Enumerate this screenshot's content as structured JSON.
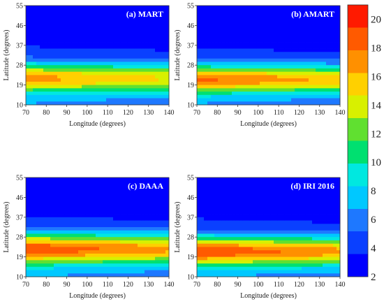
{
  "chart_data": {
    "type": "heatmap",
    "panels": [
      {
        "title": "(a) MART",
        "xlabel": "Longitude (degrees)",
        "ylabel": "Latitude (degrees)",
        "peak": 17.5,
        "peak_lat": 22,
        "spread": 1.0
      },
      {
        "title": "(b) AMART",
        "xlabel": "Longitude (degrees)",
        "ylabel": "Latitude (degrees)",
        "peak": 18.8,
        "peak_lat": 21.5,
        "spread": 0.95
      },
      {
        "title": "(c) DAAA",
        "xlabel": "Longitude (degrees)",
        "ylabel": "Latitude (degrees)",
        "peak": 19.8,
        "peak_lat": 22.5,
        "spread": 1.05
      },
      {
        "title": "(d) IRI 2016",
        "xlabel": "Longitude (degrees)",
        "ylabel": "Latitude (degrees)",
        "peak": 20.0,
        "peak_lat": 21.5,
        "spread": 1.0
      }
    ],
    "x_ticks": [
      "70",
      "80",
      "90",
      "100",
      "110",
      "120",
      "130",
      "140"
    ],
    "y_ticks": [
      "10",
      "19",
      "28",
      "37",
      "46",
      "55"
    ],
    "xlim": [
      70,
      140
    ],
    "ylim": [
      10,
      55
    ],
    "colorbar": {
      "ticks": [
        "2",
        "4",
        "6",
        "8",
        "10",
        "12",
        "14",
        "16",
        "18",
        "20"
      ],
      "range": [
        2,
        21
      ],
      "colors": [
        "#0000ff",
        "#0a40ff",
        "#1e78ff",
        "#00c8ff",
        "#00e8e0",
        "#00e070",
        "#60e030",
        "#d8f000",
        "#ffd000",
        "#ff9000",
        "#ff5a00",
        "#ff1a00"
      ]
    }
  }
}
